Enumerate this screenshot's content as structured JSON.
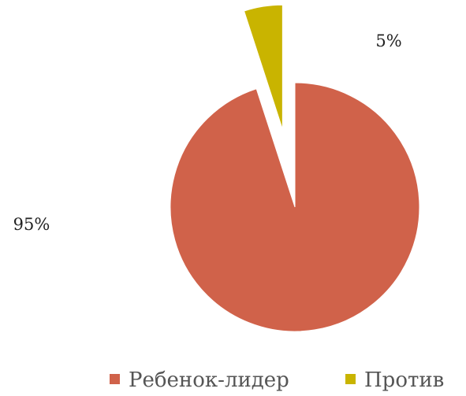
{
  "chart_data": {
    "type": "pie",
    "title": "",
    "labels": [
      "Ребенок-лидер",
      "Против"
    ],
    "values": [
      95,
      5
    ],
    "data_labels": [
      "95%",
      "5%"
    ],
    "colors": [
      "#D0624A",
      "#C9B400"
    ],
    "exploded": [
      false,
      true
    ],
    "legend": {
      "position": "bottom",
      "entries": [
        "Ребенок-лидер",
        "Против"
      ]
    }
  }
}
